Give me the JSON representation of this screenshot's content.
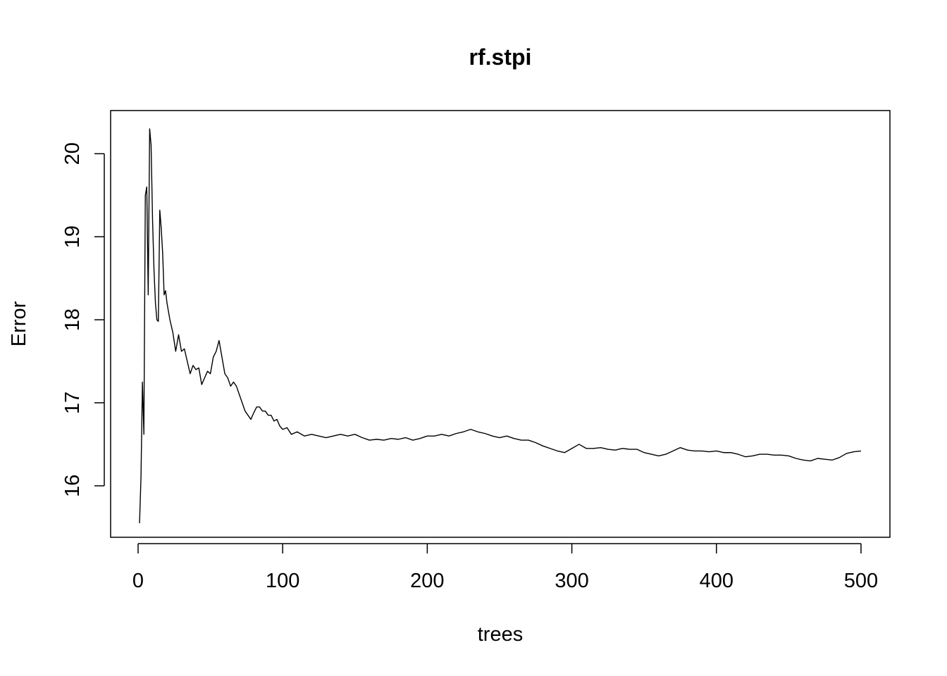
{
  "chart_data": {
    "type": "line",
    "title": "rf.stpi",
    "xlabel": "trees",
    "ylabel": "Error",
    "xlim": [
      -19,
      520
    ],
    "ylim": [
      15.38,
      20.52
    ],
    "grid": false,
    "xticks": [
      0,
      100,
      200,
      300,
      400,
      500
    ],
    "xtick_labels": [
      "0",
      "100",
      "200",
      "300",
      "400",
      "500"
    ],
    "yticks": [
      16,
      17,
      18,
      19,
      20
    ],
    "ytick_labels": [
      "16",
      "17",
      "18",
      "19",
      "20"
    ],
    "series": [
      {
        "name": "",
        "color": "#000000",
        "x": [
          1,
          2,
          3,
          4,
          5,
          6,
          7,
          8,
          9,
          10,
          11,
          12,
          13,
          14,
          15,
          16,
          17,
          18,
          19,
          20,
          22,
          24,
          26,
          28,
          30,
          32,
          34,
          36,
          38,
          40,
          42,
          44,
          46,
          48,
          50,
          52,
          54,
          56,
          58,
          60,
          62,
          64,
          66,
          68,
          70,
          72,
          74,
          76,
          78,
          80,
          82,
          84,
          86,
          88,
          90,
          92,
          94,
          96,
          98,
          100,
          103,
          106,
          110,
          115,
          120,
          125,
          130,
          135,
          140,
          145,
          150,
          155,
          160,
          165,
          170,
          175,
          180,
          185,
          190,
          195,
          200,
          205,
          210,
          215,
          220,
          225,
          230,
          235,
          240,
          245,
          250,
          255,
          260,
          265,
          270,
          275,
          280,
          285,
          290,
          295,
          300,
          305,
          310,
          315,
          320,
          325,
          330,
          335,
          340,
          345,
          350,
          355,
          360,
          365,
          370,
          375,
          380,
          385,
          390,
          395,
          400,
          405,
          410,
          415,
          420,
          425,
          430,
          435,
          440,
          445,
          450,
          455,
          460,
          465,
          470,
          475,
          480,
          485,
          490,
          495,
          500
        ],
        "values": [
          15.55,
          16.1,
          17.25,
          16.62,
          19.5,
          19.6,
          18.3,
          20.3,
          20.1,
          19.2,
          18.6,
          18.2,
          18.0,
          17.98,
          19.32,
          19.1,
          18.8,
          18.3,
          18.35,
          18.2,
          18.0,
          17.85,
          17.62,
          17.82,
          17.62,
          17.65,
          17.5,
          17.35,
          17.45,
          17.4,
          17.42,
          17.22,
          17.3,
          17.38,
          17.35,
          17.55,
          17.62,
          17.75,
          17.55,
          17.35,
          17.3,
          17.2,
          17.25,
          17.2,
          17.1,
          17.0,
          16.9,
          16.85,
          16.8,
          16.88,
          16.95,
          16.95,
          16.9,
          16.9,
          16.85,
          16.85,
          16.78,
          16.8,
          16.72,
          16.68,
          16.7,
          16.62,
          16.65,
          16.6,
          16.62,
          16.6,
          16.58,
          16.6,
          16.62,
          16.6,
          16.62,
          16.58,
          16.55,
          16.56,
          16.55,
          16.57,
          16.56,
          16.58,
          16.55,
          16.57,
          16.6,
          16.6,
          16.62,
          16.6,
          16.63,
          16.65,
          16.68,
          16.65,
          16.63,
          16.6,
          16.58,
          16.6,
          16.57,
          16.55,
          16.55,
          16.52,
          16.48,
          16.45,
          16.42,
          16.4,
          16.45,
          16.5,
          16.45,
          16.45,
          16.46,
          16.44,
          16.43,
          16.45,
          16.44,
          16.44,
          16.4,
          16.38,
          16.36,
          16.38,
          16.42,
          16.46,
          16.43,
          16.42,
          16.42,
          16.41,
          16.42,
          16.4,
          16.4,
          16.38,
          16.35,
          16.36,
          16.38,
          16.38,
          16.37,
          16.37,
          16.36,
          16.33,
          16.31,
          16.3,
          16.33,
          16.32,
          16.31,
          16.34,
          16.39,
          16.41,
          16.42
        ]
      }
    ]
  }
}
